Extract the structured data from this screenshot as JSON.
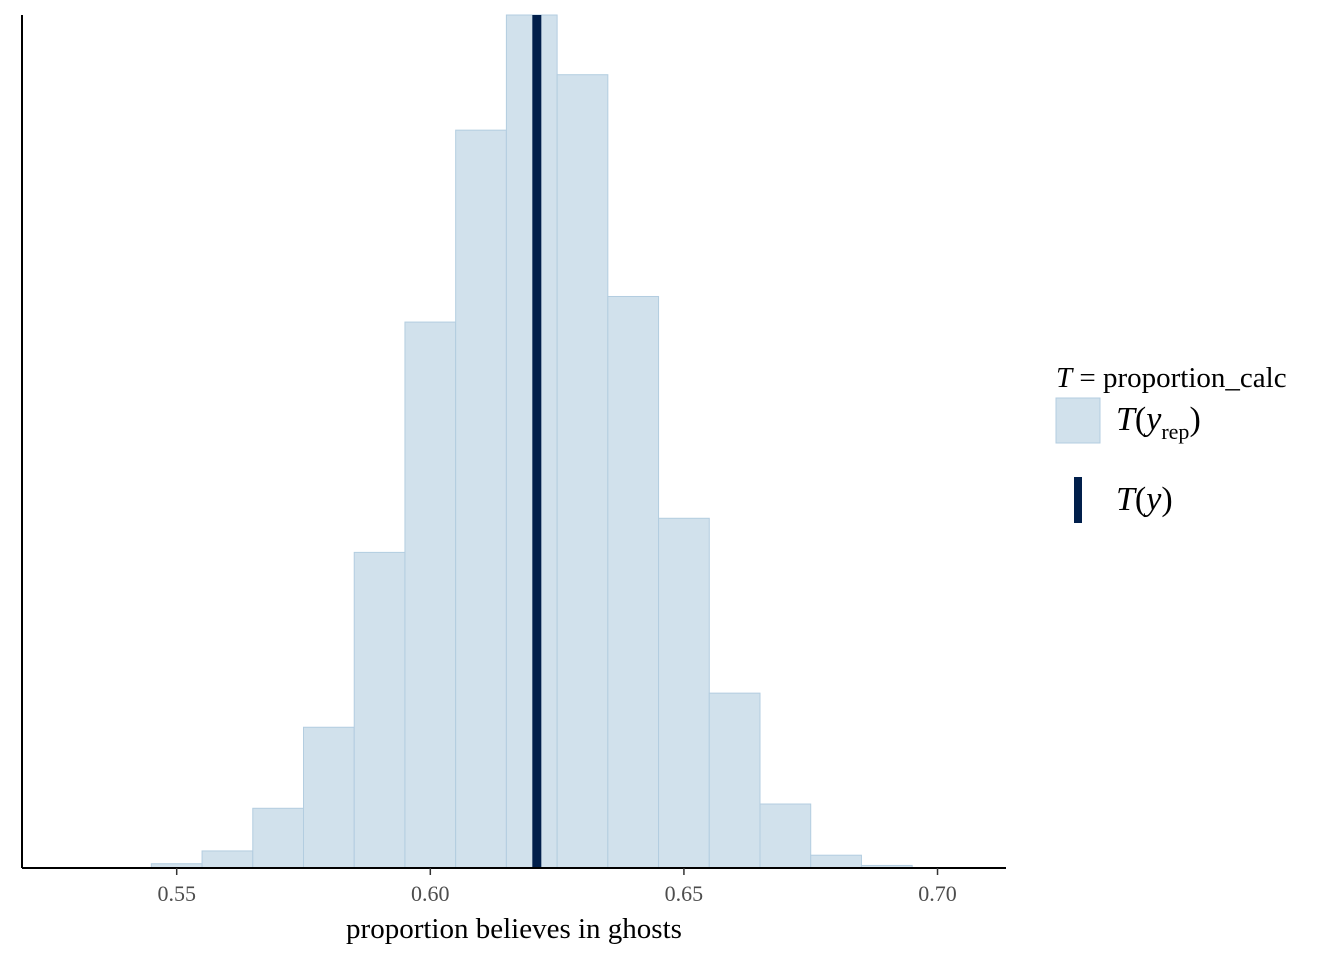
{
  "chart_data": {
    "type": "bar",
    "histogram": true,
    "bin_width": 0.01,
    "bins": [
      {
        "start": 0.545,
        "end": 0.555,
        "count": 0.5
      },
      {
        "start": 0.555,
        "end": 0.565,
        "count": 2
      },
      {
        "start": 0.565,
        "end": 0.575,
        "count": 7
      },
      {
        "start": 0.575,
        "end": 0.585,
        "count": 16.5
      },
      {
        "start": 0.585,
        "end": 0.595,
        "count": 37
      },
      {
        "start": 0.595,
        "end": 0.605,
        "count": 64
      },
      {
        "start": 0.605,
        "end": 0.615,
        "count": 86.5
      },
      {
        "start": 0.615,
        "end": 0.625,
        "count": 100
      },
      {
        "start": 0.625,
        "end": 0.635,
        "count": 93
      },
      {
        "start": 0.635,
        "end": 0.645,
        "count": 67
      },
      {
        "start": 0.645,
        "end": 0.655,
        "count": 41
      },
      {
        "start": 0.655,
        "end": 0.665,
        "count": 20.5
      },
      {
        "start": 0.665,
        "end": 0.675,
        "count": 7.5
      },
      {
        "start": 0.675,
        "end": 0.685,
        "count": 1.5
      },
      {
        "start": 0.685,
        "end": 0.695,
        "count": 0.3
      }
    ],
    "observed_value": 0.621,
    "xlim": [
      0.5195,
      0.7135
    ],
    "ylim": [
      0,
      100
    ],
    "x_ticks": [
      {
        "value": 0.55,
        "label": "0.55"
      },
      {
        "value": 0.6,
        "label": "0.60"
      },
      {
        "value": 0.65,
        "label": "0.65"
      },
      {
        "value": 0.7,
        "label": "0.70"
      }
    ],
    "xlabel": "proportion believes in ghosts",
    "ylabel": "",
    "y_ticks_visible": false,
    "grid": false,
    "legend_position": "right",
    "legend": {
      "title_T": "T",
      "title_rest": " = proportion_calc",
      "items": [
        {
          "kind": "bar",
          "T": "T",
          "open": "(",
          "var": "y",
          "sub": "rep",
          "close": ")"
        },
        {
          "kind": "line",
          "T": "T",
          "open": "(",
          "var": "y",
          "sub": "",
          "close": ")"
        }
      ]
    },
    "colors": {
      "bar_fill": "#d1e1ec",
      "bar_stroke": "#b3cde0",
      "observed_line": "#011f4b",
      "axis": "#000000"
    }
  }
}
